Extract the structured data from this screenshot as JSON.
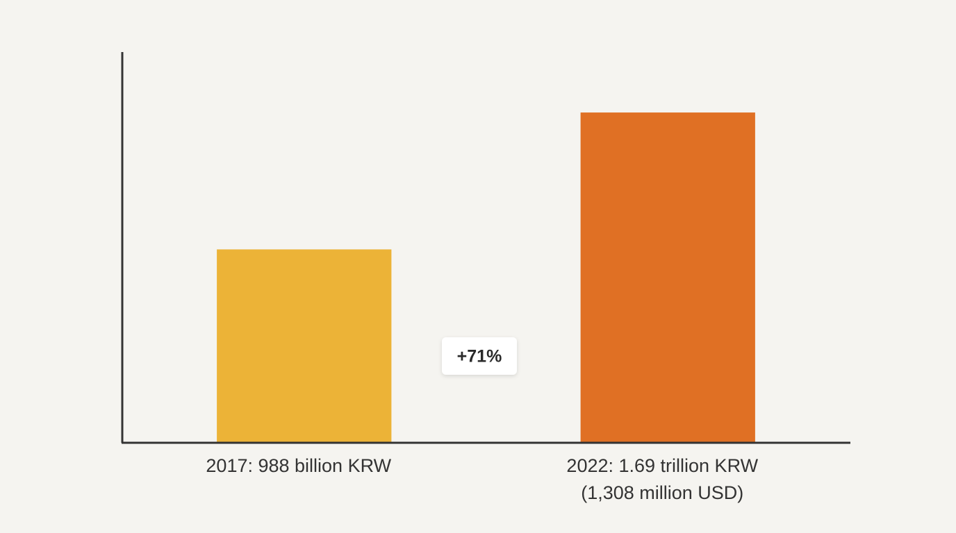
{
  "chart_data": {
    "type": "bar",
    "categories": [
      [
        "2017: 988 billion KRW"
      ],
      [
        "2022: 1.69 trillion KRW",
        "(1,308 million USD)"
      ]
    ],
    "values": [
      988,
      1690
    ],
    "colors": [
      "#ecb337",
      "#e07024"
    ],
    "ylim": [
      0,
      2000
    ],
    "annotation": "+71%"
  }
}
